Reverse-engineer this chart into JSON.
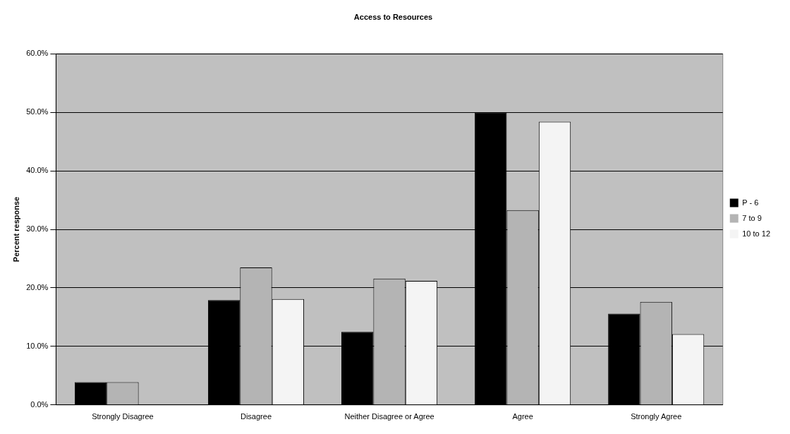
{
  "chart_data": {
    "type": "bar",
    "title": "Access to Resources",
    "ylabel": "Percent response",
    "categories": [
      "Strongly Disagree",
      "Disagree",
      "Neither Disagree or Agree",
      "Agree",
      "Strongly Agree"
    ],
    "series": [
      {
        "name": "P - 6",
        "color": "#000000",
        "values": [
          3.9,
          17.9,
          12.5,
          50.0,
          15.6
        ]
      },
      {
        "name": "7 to 9",
        "color": "#b4b4b4",
        "values": [
          3.9,
          23.5,
          21.6,
          33.3,
          17.6
        ]
      },
      {
        "name": "10 to 12",
        "color": "#f4f4f4",
        "values": [
          0,
          18.1,
          21.2,
          48.4,
          12.1
        ]
      }
    ],
    "ylim": [
      0,
      60
    ],
    "yticks": [
      {
        "value": 0,
        "label": "0.0%"
      },
      {
        "value": 10,
        "label": "10.0%"
      },
      {
        "value": 20,
        "label": "20.0%"
      },
      {
        "value": 30,
        "label": "30.0%"
      },
      {
        "value": 40,
        "label": "40.0%"
      },
      {
        "value": 50,
        "label": "50.0%"
      },
      {
        "value": 60,
        "label": "60.0%"
      }
    ],
    "grid": "y",
    "legend": "right"
  }
}
